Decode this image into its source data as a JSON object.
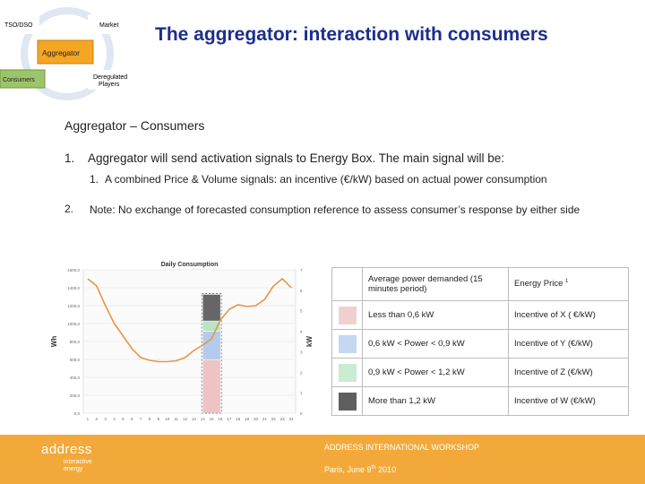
{
  "diagram": {
    "nodes": {
      "tso_dso": "TSO/DSO",
      "market": "Market",
      "aggregator": "Aggregator",
      "consumers": "Consumers",
      "deregulated_line1": "Deregulated",
      "deregulated_line2": "Players"
    }
  },
  "title": "The aggregator: interaction with consumers",
  "section_heading": "Aggregator – Consumers",
  "list": {
    "item1_number": "1.",
    "item1_text": "Aggregator will send activation signals to Energy Box. The main signal will be:",
    "sub1_number": "1.",
    "sub1_text": "A combined Price & Volume signals: an incentive (€/kW) based on actual power consumption",
    "item2_number": "2.",
    "item2_text": "Note: No exchange of forecasted consumption reference to assess consumer’s response by either side"
  },
  "chart_data": {
    "type": "line",
    "title": "Daily Consumption",
    "xlabel": "",
    "ylabel_left": "Wh",
    "ylabel_right": "kW",
    "categories": [
      "1",
      "2",
      "3",
      "4",
      "5",
      "6",
      "7",
      "8",
      "9",
      "10",
      "11",
      "12",
      "13",
      "14",
      "15",
      "16",
      "17",
      "18",
      "19",
      "20",
      "21",
      "22",
      "23",
      "24"
    ],
    "y_left_ticks": [
      "1600,0",
      "1400,0",
      "1200,0",
      "1000,0",
      "800,0",
      "600,0",
      "400,0",
      "200,0",
      "0,0"
    ],
    "y_right_ticks": [
      "7",
      "6",
      "5",
      "4",
      "3",
      "2",
      "1",
      "0"
    ],
    "ylim_left": [
      0,
      1600
    ],
    "ylim_right": [
      0,
      7
    ],
    "series": [
      {
        "values": [
          1500,
          1420,
          1200,
          1000,
          860,
          720,
          620,
          590,
          575,
          575,
          585,
          620,
          700,
          760,
          830,
          1040,
          1160,
          1210,
          1190,
          1200,
          1270,
          1420,
          1500,
          1400
        ]
      }
    ],
    "highlight_hour": "15",
    "highlight_stack": [
      {
        "color": "#eec3c3",
        "from_kw": 0,
        "to_kw": 2.6
      },
      {
        "color": "#b4cbec",
        "from_kw": 2.6,
        "to_kw": 4.0
      },
      {
        "color": "#b9e4c6",
        "from_kw": 4.0,
        "to_kw": 4.5
      },
      {
        "color": "#666666",
        "from_kw": 4.5,
        "to_kw": 5.8
      }
    ]
  },
  "table": {
    "header_col1": "Average power demanded (15 minutes period)",
    "header_col2": "Energy Price",
    "header_col2_sup": "1",
    "rows": [
      {
        "color": "#f2d0d0",
        "range": "Less than 0,6 kW",
        "price": "Incentive of X ( €/kW)"
      },
      {
        "color": "#c6d7f2",
        "range": "0,6 kW < Power < 0,9 kW",
        "price": "Incentive of Y (€/kW)"
      },
      {
        "color": "#c9ecd3",
        "range": "0,9 kW < Power < 1,2 kW",
        "price": "Incentive of Z (€/kW)"
      },
      {
        "color": "#5f5f5f",
        "range": "More than 1,2 kW",
        "price": "Incentive of W (€/kW)"
      }
    ]
  },
  "footer": {
    "logo_main": "address",
    "logo_sub1": "interactive",
    "logo_sub2": "energy",
    "workshop": "ADDRESS INTERNATIONAL WORKSHOP",
    "place_prefix": "Paris, June 9",
    "place_sup": "th",
    "place_suffix": " 2010"
  },
  "colors": {
    "title": "#1c2e8c",
    "footer_bg": "#f2a93a",
    "aggregator_box": "#f5a623",
    "consumers_box": "#9cc46a",
    "line": "#e6954a"
  }
}
